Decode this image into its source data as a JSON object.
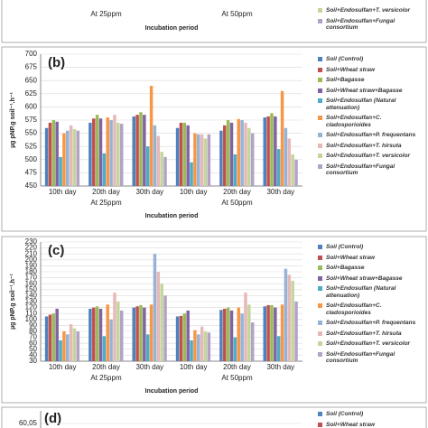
{
  "chart_data": [
    {
      "type": "bar",
      "groups": [
        "At 25ppm",
        "At 50ppm"
      ],
      "x_label": "Incubation period",
      "series": [
        {
          "name": "Soil+Endosulfan+T. versicolor",
          "color": "#c3d69b"
        },
        {
          "name": "Soil+Endosulfan+Fungal consortium",
          "color": "#b3a2c7"
        }
      ]
    },
    {
      "type": "bar",
      "title": "(b)",
      "y_label": "µg pNP.g soil⁻¹.h⁻¹",
      "x_label": "Incubation period",
      "categories": [
        "10th day",
        "20th day",
        "30th day",
        "10th day",
        "20th day",
        "30th day"
      ],
      "groups": [
        "At 25ppm",
        "At 50ppm"
      ],
      "ylim": [
        450,
        700
      ],
      "yticks": [
        450,
        475,
        500,
        525,
        550,
        575,
        600,
        625,
        650,
        675,
        700
      ],
      "grid": true,
      "series": [
        {
          "name": "Soil (Control)",
          "color": "#4f81bd",
          "values": [
            560,
            570,
            582,
            560,
            555,
            580
          ]
        },
        {
          "name": "Soil+Wheat straw",
          "color": "#c0504d",
          "values": [
            570,
            578,
            585,
            570,
            565,
            582
          ]
        },
        {
          "name": "Soil+Bagasse",
          "color": "#9bbb59",
          "values": [
            575,
            585,
            590,
            570,
            575,
            588
          ]
        },
        {
          "name": "Soil+Wheat straw+Bagasse",
          "color": "#8064a2",
          "values": [
            572,
            578,
            585,
            565,
            570,
            582
          ]
        },
        {
          "name": "Soil+Endosulfan (Natural attenuation)",
          "color": "#4bacc6",
          "values": [
            505,
            512,
            525,
            495,
            510,
            520
          ]
        },
        {
          "name": "Soil+Endosulfan+C. cladosporioides",
          "color": "#f79646",
          "values": [
            550,
            580,
            640,
            550,
            577,
            630
          ]
        },
        {
          "name": "Soil+Endosulfan+P. frequentans",
          "color": "#95b3d7",
          "values": [
            555,
            575,
            565,
            548,
            575,
            560
          ]
        },
        {
          "name": "Soil+Endosulfan+T. hirsuta",
          "color": "#e6b9b8",
          "values": [
            565,
            585,
            545,
            548,
            570,
            540
          ]
        },
        {
          "name": "Soil+Endosulfan+T. versicolor",
          "color": "#c3d69b",
          "values": [
            558,
            570,
            515,
            540,
            560,
            510
          ]
        },
        {
          "name": "Soil+Endosulfan+Fungal consortium",
          "color": "#b3a2c7",
          "values": [
            555,
            568,
            505,
            548,
            550,
            500
          ]
        }
      ]
    },
    {
      "type": "bar",
      "title": "(c)",
      "y_label": "µg pNP.g soil⁻¹.h⁻¹",
      "x_label": "Incubation period",
      "categories": [
        "10th day",
        "20th day",
        "30th day",
        "10th day",
        "20th day",
        "30th day"
      ],
      "groups": [
        "At 25ppm",
        "At 50ppm"
      ],
      "ylim": [
        30,
        230
      ],
      "yticks": [
        30,
        40,
        50,
        60,
        70,
        80,
        90,
        100,
        110,
        120,
        130,
        140,
        150,
        160,
        170,
        180,
        190,
        200,
        210,
        220,
        230
      ],
      "grid": true,
      "series": [
        {
          "name": "Soil (Control)",
          "color": "#4f81bd",
          "values": [
            105,
            118,
            120,
            105,
            116,
            122
          ]
        },
        {
          "name": "Soil+Wheat straw",
          "color": "#c0504d",
          "values": [
            108,
            120,
            122,
            106,
            118,
            124
          ]
        },
        {
          "name": "Soil+Bagasse",
          "color": "#9bbb59",
          "values": [
            110,
            122,
            124,
            110,
            120,
            124
          ]
        },
        {
          "name": "Soil+Wheat straw+Bagasse",
          "color": "#8064a2",
          "values": [
            118,
            118,
            120,
            115,
            115,
            120
          ]
        },
        {
          "name": "Soil+Endosulfan (Natural attenuation)",
          "color": "#4bacc6",
          "values": [
            65,
            72,
            75,
            65,
            70,
            72
          ]
        },
        {
          "name": "Soil+Endosulfan+C. cladosporioides",
          "color": "#f79646",
          "values": [
            80,
            125,
            125,
            82,
            120,
            125
          ]
        },
        {
          "name": "Soil+Endosulfan+P. frequentans",
          "color": "#95b3d7",
          "values": [
            75,
            100,
            210,
            75,
            110,
            185
          ]
        },
        {
          "name": "Soil+Endosulfan+T. hirsuta",
          "color": "#e6b9b8",
          "values": [
            92,
            145,
            180,
            88,
            145,
            175
          ]
        },
        {
          "name": "Soil+Endosulfan+T. versicolor",
          "color": "#c3d69b",
          "values": [
            85,
            130,
            160,
            80,
            125,
            165
          ]
        },
        {
          "name": "Soil+Endosulfan+Fungal consortium",
          "color": "#b3a2c7",
          "values": [
            80,
            115,
            140,
            78,
            95,
            130
          ]
        }
      ]
    },
    {
      "type": "bar",
      "title": "(d)",
      "yticks": [
        {
          "value": 60.05,
          "label": "60,05"
        }
      ],
      "series": [
        {
          "name": "Soil (Control)",
          "color": "#4f81bd"
        },
        {
          "name": "Soil+Wheat straw",
          "color": "#c0504d"
        }
      ]
    }
  ]
}
